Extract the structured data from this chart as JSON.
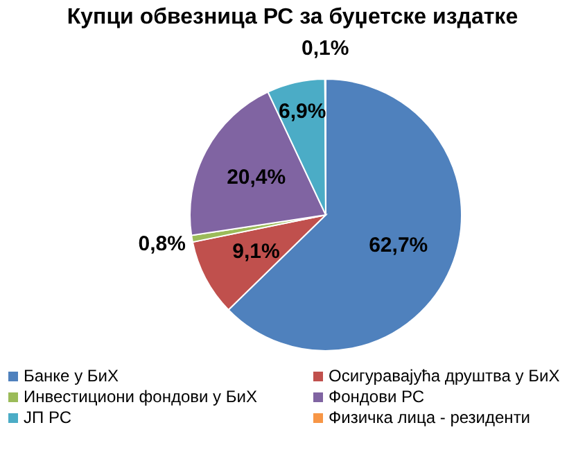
{
  "chart_data": {
    "type": "pie",
    "title": "Купци обвезница РС за буџетске издатке",
    "categories": [
      "Банке у БиХ",
      "Осигуравајућа друштва у БиХ",
      "Инвестициони фондови у БиХ",
      "Фондови РС",
      "ЈП РС",
      "Физичка лица - резиденти"
    ],
    "values": [
      62.7,
      9.1,
      0.8,
      20.4,
      6.9,
      0.1
    ],
    "colors": [
      "#4f81bd",
      "#c0504d",
      "#9bbb59",
      "#8064a2",
      "#4bacc6",
      "#f79646"
    ],
    "value_labels": [
      "62,7%",
      "9,1%",
      "0,8%",
      "20,4%",
      "6,9%",
      "0,1%"
    ],
    "legend": "bottom"
  }
}
